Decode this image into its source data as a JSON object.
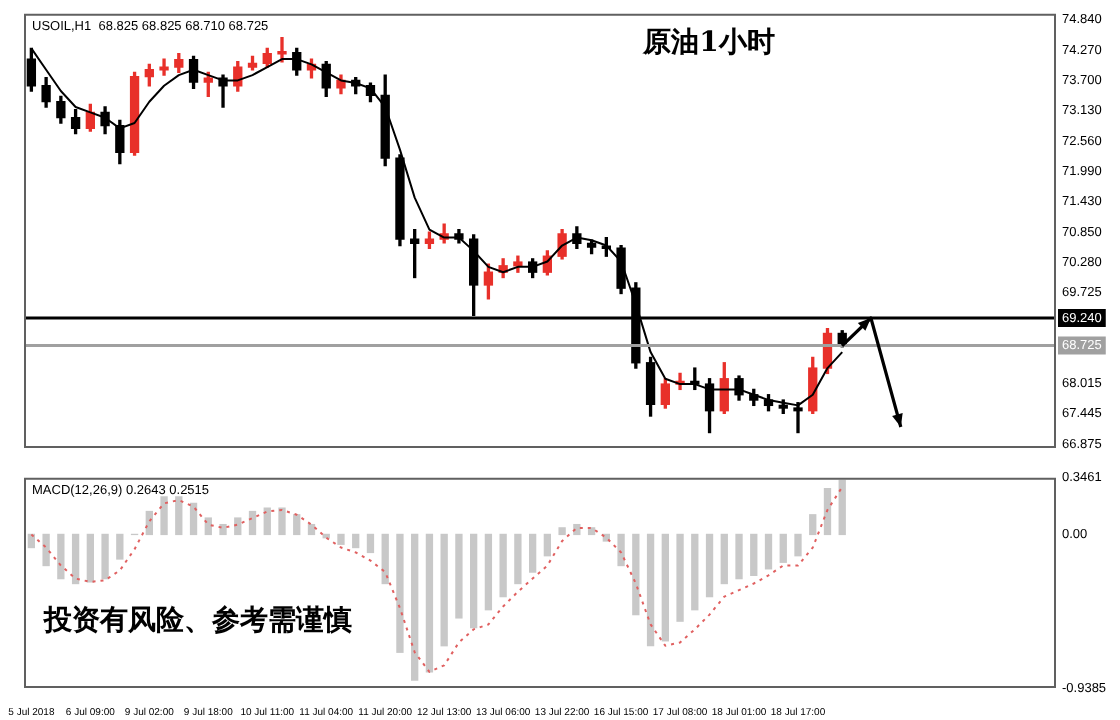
{
  "chart_data": [
    {
      "type": "candlestick",
      "title": "原油1小时",
      "annotations": [
        "USOIL,H1  68.825 68.825 68.710 68.725"
      ],
      "categories": [
        null,
        null,
        null,
        null,
        null,
        null,
        null,
        null,
        null,
        null,
        null,
        null,
        null,
        null,
        null,
        null,
        null,
        null,
        null,
        null,
        null,
        null,
        null,
        null,
        null,
        null,
        null,
        null,
        null,
        null,
        null,
        null,
        null,
        null,
        null,
        null,
        null,
        null,
        null,
        null,
        null,
        null,
        null,
        null,
        null,
        null,
        null,
        null,
        null,
        null,
        null,
        null,
        null,
        null,
        null,
        null,
        null,
        null,
        null,
        null,
        null,
        null,
        null,
        null,
        null,
        null,
        null,
        null,
        null,
        null
      ],
      "ohlc": [
        [
          74.1,
          74.3,
          73.5,
          73.6
        ],
        [
          73.6,
          73.75,
          73.2,
          73.3
        ],
        [
          73.3,
          73.4,
          72.9,
          73.0
        ],
        [
          73.0,
          73.15,
          72.7,
          72.8
        ],
        [
          72.8,
          73.25,
          72.75,
          73.1
        ],
        [
          73.1,
          73.2,
          72.7,
          72.85
        ],
        [
          72.85,
          72.95,
          72.14,
          72.35
        ],
        [
          72.35,
          73.85,
          72.3,
          73.77
        ],
        [
          73.77,
          74.0,
          73.6,
          73.9
        ],
        [
          73.9,
          74.1,
          73.8,
          73.95
        ],
        [
          73.95,
          74.2,
          73.85,
          74.09
        ],
        [
          74.09,
          74.15,
          73.55,
          73.67
        ],
        [
          73.67,
          73.85,
          73.4,
          73.74
        ],
        [
          73.74,
          73.8,
          73.2,
          73.6
        ],
        [
          73.6,
          74.05,
          73.5,
          73.95
        ],
        [
          73.95,
          74.15,
          73.9,
          74.02
        ],
        [
          74.02,
          74.3,
          73.95,
          74.2
        ],
        [
          74.2,
          74.5,
          74.05,
          74.22
        ],
        [
          74.22,
          74.3,
          73.8,
          73.9
        ],
        [
          73.9,
          74.1,
          73.75,
          74.0
        ],
        [
          74.0,
          74.05,
          73.4,
          73.56
        ],
        [
          73.56,
          73.8,
          73.45,
          73.7
        ],
        [
          73.7,
          73.75,
          73.45,
          73.6
        ],
        [
          73.6,
          73.65,
          73.3,
          73.42
        ],
        [
          73.42,
          73.8,
          72.1,
          72.24
        ],
        [
          72.24,
          72.3,
          70.6,
          70.72
        ],
        [
          70.72,
          70.9,
          70.0,
          70.64
        ],
        [
          70.64,
          70.85,
          70.55,
          70.72
        ],
        [
          70.72,
          71.0,
          70.65,
          70.82
        ],
        [
          70.82,
          70.9,
          70.65,
          70.72
        ],
        [
          70.72,
          70.8,
          69.29,
          69.86
        ],
        [
          69.86,
          70.25,
          69.6,
          70.1
        ],
        [
          70.1,
          70.35,
          70.0,
          70.22
        ],
        [
          70.22,
          70.4,
          70.1,
          70.29
        ],
        [
          70.29,
          70.35,
          70.0,
          70.1
        ],
        [
          70.1,
          70.5,
          70.05,
          70.4
        ],
        [
          70.4,
          70.9,
          70.35,
          70.82
        ],
        [
          70.82,
          70.95,
          70.55,
          70.64
        ],
        [
          70.64,
          70.7,
          70.45,
          70.57
        ],
        [
          70.57,
          70.75,
          70.4,
          70.55
        ],
        [
          70.55,
          70.6,
          69.7,
          69.8
        ],
        [
          69.8,
          69.9,
          68.3,
          68.4
        ],
        [
          68.4,
          68.5,
          67.4,
          67.62
        ],
        [
          67.62,
          68.1,
          67.55,
          68.0
        ],
        [
          68.0,
          68.2,
          67.9,
          68.05
        ],
        [
          68.05,
          68.3,
          67.9,
          68.0
        ],
        [
          68.0,
          68.1,
          67.09,
          67.5
        ],
        [
          67.5,
          68.4,
          67.45,
          68.1
        ],
        [
          68.1,
          68.15,
          67.7,
          67.8
        ],
        [
          67.8,
          67.9,
          67.6,
          67.7
        ],
        [
          67.7,
          67.8,
          67.5,
          67.6
        ],
        [
          67.6,
          67.7,
          67.45,
          67.55
        ],
        [
          67.55,
          67.65,
          67.09,
          67.5
        ],
        [
          67.5,
          68.5,
          67.45,
          68.3
        ],
        [
          68.3,
          69.04,
          68.2,
          68.95
        ],
        [
          68.95,
          69.0,
          68.7,
          68.725
        ],
        null,
        null,
        null,
        null,
        null,
        null,
        null,
        null,
        null,
        null,
        null,
        null,
        null,
        null
      ],
      "colors": [
        "#000000",
        "#000000",
        "#000000",
        "#000000",
        "#e8302a",
        "#000000",
        "#000000",
        "#e8302a",
        "#e8302a",
        "#e8302a",
        "#e8302a",
        "#000000",
        "#e8302a",
        "#000000",
        "#e8302a",
        "#e8302a",
        "#e8302a",
        "#e8302a",
        "#000000",
        "#e8302a",
        "#000000",
        "#e8302a",
        "#000000",
        "#000000",
        "#000000",
        "#000000",
        "#000000",
        "#e8302a",
        "#e8302a",
        "#000000",
        "#000000",
        "#e8302a",
        "#e8302a",
        "#e8302a",
        "#000000",
        "#e8302a",
        "#e8302a",
        "#000000",
        "#000000",
        "#000000",
        "#000000",
        "#000000",
        "#000000",
        "#e8302a",
        "#e8302a",
        "#000000",
        "#000000",
        "#e8302a",
        "#000000",
        "#000000",
        "#000000",
        "#000000",
        "#000000",
        "#e8302a",
        "#e8302a",
        "#000000",
        null,
        null,
        null,
        null,
        null,
        null,
        null,
        null,
        null,
        null,
        null,
        null,
        null,
        null
      ],
      "series": [
        {
          "type": "line",
          "color": "#000000",
          "values": [
            74.3,
            73.9,
            73.5,
            73.2,
            73.1,
            73.0,
            72.8,
            72.9,
            73.3,
            73.6,
            73.8,
            73.9,
            73.8,
            73.7,
            73.7,
            73.8,
            73.95,
            74.1,
            74.1,
            74.0,
            73.85,
            73.7,
            73.65,
            73.55,
            73.2,
            72.4,
            71.5,
            70.9,
            70.75,
            70.75,
            70.5,
            70.2,
            70.1,
            70.2,
            70.2,
            70.3,
            70.6,
            70.75,
            70.7,
            70.6,
            70.3,
            69.5,
            68.6,
            68.1,
            68.0,
            68.0,
            67.9,
            67.9,
            67.9,
            67.8,
            67.7,
            67.65,
            67.6,
            67.8,
            68.3,
            68.6,
            null,
            null,
            null,
            null,
            null,
            null,
            null,
            null,
            null,
            null,
            null,
            null,
            null,
            null
          ]
        }
      ],
      "ylim": [
        66.8,
        74.95
      ],
      "yticks": [
        {
          "value": 74.84,
          "label": "74.840"
        },
        {
          "value": 74.27,
          "label": "74.270"
        },
        {
          "value": 73.7,
          "label": "73.700"
        },
        {
          "value": 73.13,
          "label": "73.130"
        },
        {
          "value": 72.56,
          "label": "72.560"
        },
        {
          "value": 71.99,
          "label": "71.990"
        },
        {
          "value": 71.43,
          "label": "71.430"
        },
        {
          "value": 70.85,
          "label": "70.850"
        },
        {
          "value": 70.28,
          "label": "70.280"
        },
        {
          "value": 69.725,
          "label": "69.725"
        },
        {
          "value": 68.015,
          "label": "68.015"
        },
        {
          "value": 67.445,
          "label": "67.445"
        },
        {
          "value": 66.875,
          "label": "66.875"
        }
      ],
      "ref_lines": [
        {
          "axis": "y",
          "value": 69.24,
          "label": "69.240",
          "color": "#000000"
        },
        {
          "axis": "y",
          "value": 68.725,
          "label": "68.725",
          "color": "#a0a0a0"
        }
      ],
      "tick_labels": "y"
    },
    {
      "type": "bar",
      "annotations": [
        "MACD(12,26,9) 0.2643 0.2515",
        "投资有风险、参考需谨慎"
      ],
      "categories": [
        "5 Jul 2018",
        null,
        null,
        null,
        "6 Jul 09:00",
        null,
        null,
        null,
        "9 Jul 02:00",
        null,
        null,
        null,
        "9 Jul 18:00",
        null,
        null,
        null,
        "10 Jul 11:00",
        null,
        null,
        null,
        "11 Jul 04:00",
        null,
        null,
        null,
        "11 Jul 20:00",
        null,
        null,
        null,
        "12 Jul 13:00",
        null,
        null,
        null,
        "13 Jul 06:00",
        null,
        null,
        null,
        "13 Jul 22:00",
        null,
        null,
        null,
        "16 Jul 15:00",
        null,
        null,
        null,
        "17 Jul 08:00",
        null,
        null,
        null,
        "18 Jul 01:00",
        null,
        null,
        null,
        "18 Jul 17:00",
        null,
        null,
        null,
        null,
        null,
        null,
        null,
        null,
        null,
        null,
        null,
        null,
        null,
        null,
        null,
        null,
        null
      ],
      "series": [
        {
          "type": "bar",
          "color": "#c8c8c8",
          "values": [
            -0.08,
            -0.19,
            -0.27,
            -0.3,
            -0.29,
            -0.27,
            -0.15,
            0,
            0.14,
            0.23,
            0.23,
            0.19,
            0.1,
            0.06,
            0.1,
            0.14,
            0.16,
            0.16,
            0.12,
            0.06,
            -0.02,
            -0.06,
            -0.08,
            -0.11,
            -0.3,
            -0.72,
            -0.89,
            -0.84,
            -0.68,
            -0.51,
            -0.57,
            -0.46,
            -0.38,
            -0.3,
            -0.23,
            -0.13,
            0.04,
            0.06,
            0.04,
            -0.04,
            -0.19,
            -0.49,
            -0.68,
            -0.65,
            -0.53,
            -0.46,
            -0.38,
            -0.3,
            -0.27,
            -0.25,
            -0.21,
            -0.17,
            -0.13,
            0.12,
            0.28,
            0.33,
            null,
            null,
            null,
            null,
            null,
            null,
            null,
            null,
            null,
            null,
            null,
            null,
            null,
            null
          ]
        },
        {
          "type": "line",
          "color": "#e06060",
          "line_style": "dotted",
          "values": [
            0,
            -0.08,
            -0.19,
            -0.27,
            -0.29,
            -0.28,
            -0.22,
            -0.09,
            0.08,
            0.19,
            0.21,
            0.17,
            0.06,
            0.04,
            0.06,
            0.1,
            0.14,
            0.15,
            0.12,
            0.06,
            -0.02,
            -0.08,
            -0.11,
            -0.16,
            -0.23,
            -0.45,
            -0.72,
            -0.84,
            -0.8,
            -0.66,
            -0.58,
            -0.55,
            -0.44,
            -0.35,
            -0.27,
            -0.19,
            -0.04,
            0.04,
            0.04,
            -0.02,
            -0.11,
            -0.3,
            -0.55,
            -0.68,
            -0.66,
            -0.58,
            -0.49,
            -0.38,
            -0.34,
            -0.3,
            -0.25,
            -0.19,
            -0.19,
            -0.08,
            0.15,
            0.29,
            null,
            null,
            null,
            null,
            null,
            null,
            null,
            null,
            null,
            null,
            null,
            null,
            null,
            null
          ]
        }
      ],
      "ylim": [
        -0.9385,
        0.3461
      ],
      "yticks": [
        {
          "value": 0.3461,
          "label": "0.3461"
        },
        {
          "value": 0,
          "label": "0.00"
        },
        {
          "value": -0.9385,
          "label": "-0.9385"
        }
      ]
    }
  ]
}
